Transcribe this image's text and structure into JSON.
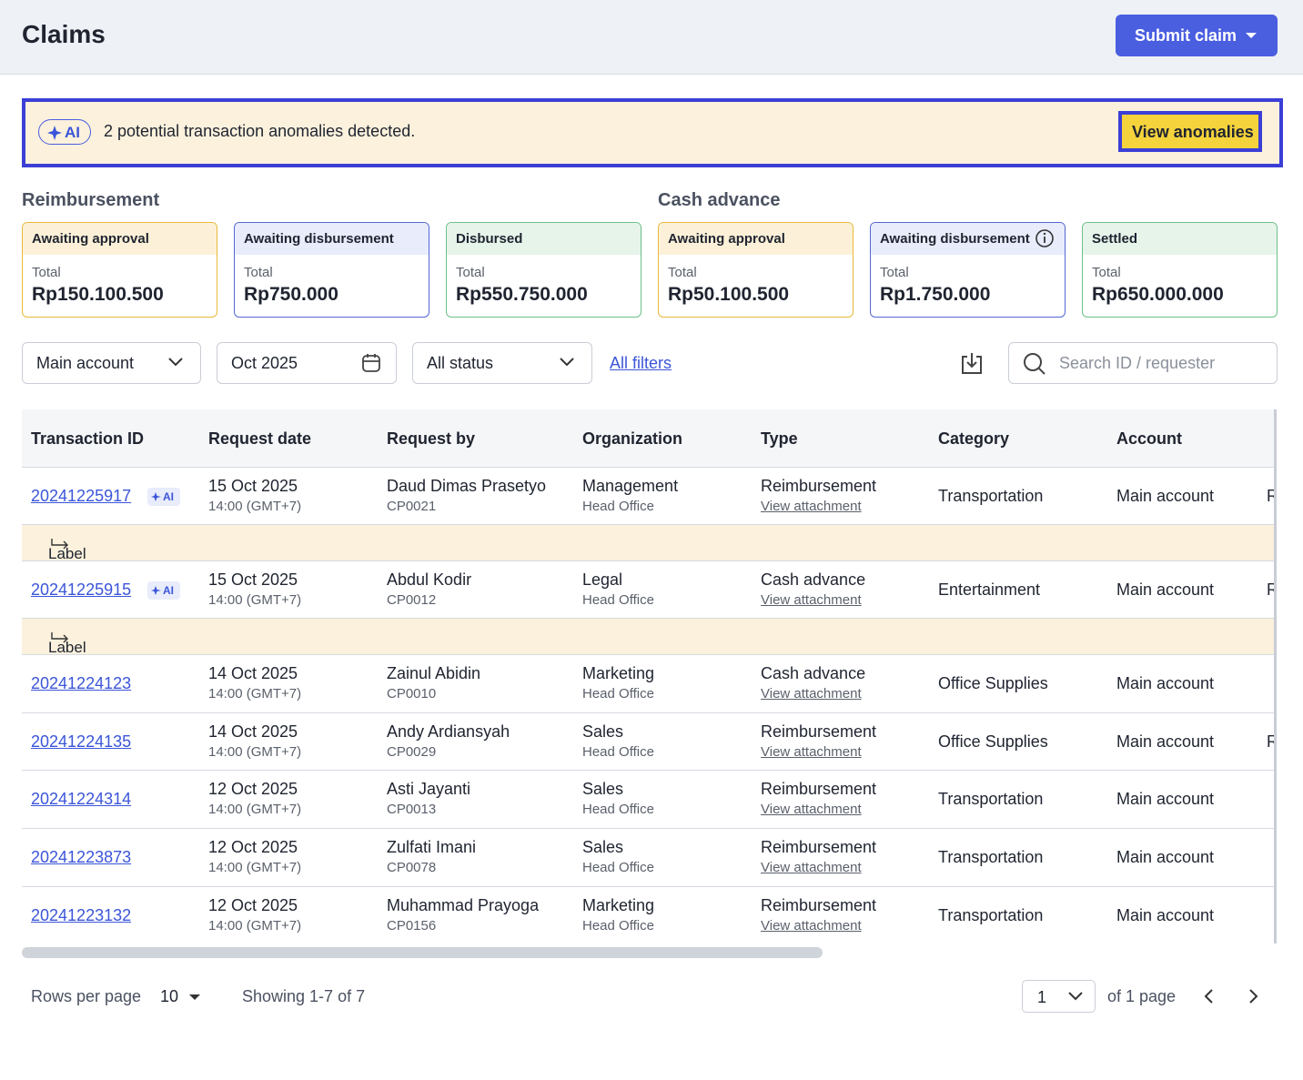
{
  "header": {
    "title": "Claims",
    "submit_button": "Submit claim"
  },
  "banner": {
    "ai_badge": "AI",
    "message": "2 potential transaction anomalies detected.",
    "button": "View anomalies"
  },
  "summary": [
    {
      "title": "Reimbursement",
      "cards": [
        {
          "status": "Awaiting approval",
          "total_label": "Total",
          "amount": "Rp150.100.500",
          "tone": "yellow"
        },
        {
          "status": "Awaiting disbursement",
          "total_label": "Total",
          "amount": "Rp750.000",
          "tone": "blue"
        },
        {
          "status": "Disbursed",
          "total_label": "Total",
          "amount": "Rp550.750.000",
          "tone": "green"
        }
      ]
    },
    {
      "title": "Cash advance",
      "cards": [
        {
          "status": "Awaiting approval",
          "total_label": "Total",
          "amount": "Rp50.100.500",
          "tone": "yellow"
        },
        {
          "status": "Awaiting disbursement",
          "total_label": "Total",
          "amount": "Rp1.750.000",
          "tone": "blue",
          "info": true
        },
        {
          "status": "Settled",
          "total_label": "Total",
          "amount": "Rp650.000.000",
          "tone": "green"
        }
      ]
    }
  ],
  "filters": {
    "account": "Main account",
    "period": "Oct 2025",
    "status": "All status",
    "all_filters": "All filters",
    "search_placeholder": "Search ID / requester"
  },
  "table": {
    "columns": [
      "Transaction ID",
      "Request date",
      "Request by",
      "Organization",
      "Type",
      "Category",
      "Account"
    ],
    "rows": [
      {
        "id": "20241225917",
        "ai": "AI",
        "date": "15 Oct 2025",
        "time": "14:00 (GMT+7)",
        "requester": "Daud Dimas Prasetyo",
        "code": "CP0021",
        "organization": "Management",
        "office": "Head Office",
        "type": "Reimbursement",
        "attachment": "View attachment",
        "category": "Transportation",
        "account": "Main account",
        "extra": "R",
        "anomaly_label": "Label"
      },
      {
        "id": "20241225915",
        "ai": "AI",
        "date": "15 Oct 2025",
        "time": "14:00 (GMT+7)",
        "requester": "Abdul Kodir",
        "code": "CP0012",
        "organization": "Legal",
        "office": "Head Office",
        "type": "Cash advance",
        "attachment": "View attachment",
        "category": "Entertainment",
        "account": "Main account",
        "extra": "R",
        "anomaly_label": "Label"
      },
      {
        "id": "20241224123",
        "date": "14 Oct 2025",
        "time": "14:00 (GMT+7)",
        "requester": "Zainul Abidin",
        "code": "CP0010",
        "organization": "Marketing",
        "office": "Head Office",
        "type": "Cash advance",
        "attachment": "View attachment",
        "category": "Office Supplies",
        "account": "Main account"
      },
      {
        "id": "20241224135",
        "date": "14 Oct 2025",
        "time": "14:00 (GMT+7)",
        "requester": "Andy Ardiansyah",
        "code": "CP0029",
        "organization": "Sales",
        "office": "Head Office",
        "type": "Reimbursement",
        "attachment": "View attachment",
        "category": "Office Supplies",
        "account": "Main account",
        "extra": "Rp"
      },
      {
        "id": "20241224314",
        "date": "12 Oct 2025",
        "time": "14:00 (GMT+7)",
        "requester": "Asti Jayanti",
        "code": "CP0013",
        "organization": "Sales",
        "office": "Head Office",
        "type": "Reimbursement",
        "attachment": "View attachment",
        "category": "Transportation",
        "account": "Main account"
      },
      {
        "id": "20241223873",
        "date": "12 Oct 2025",
        "time": "14:00 (GMT+7)",
        "requester": "Zulfati Imani",
        "code": "CP0078",
        "organization": "Sales",
        "office": "Head Office",
        "type": "Reimbursement",
        "attachment": "View attachment",
        "category": "Transportation",
        "account": "Main account"
      },
      {
        "id": "20241223132",
        "date": "12 Oct 2025",
        "time": "14:00 (GMT+7)",
        "requester": "Muhammad Prayoga",
        "code": "CP0156",
        "organization": "Marketing",
        "office": "Head Office",
        "type": "Reimbursement",
        "attachment": "View attachment",
        "category": "Transportation",
        "account": "Main account"
      }
    ]
  },
  "pagination": {
    "rows_label": "Rows per page",
    "rows_value": "10",
    "showing": "Showing 1-7 of 7",
    "page": "1",
    "of_page": "of 1 page"
  }
}
